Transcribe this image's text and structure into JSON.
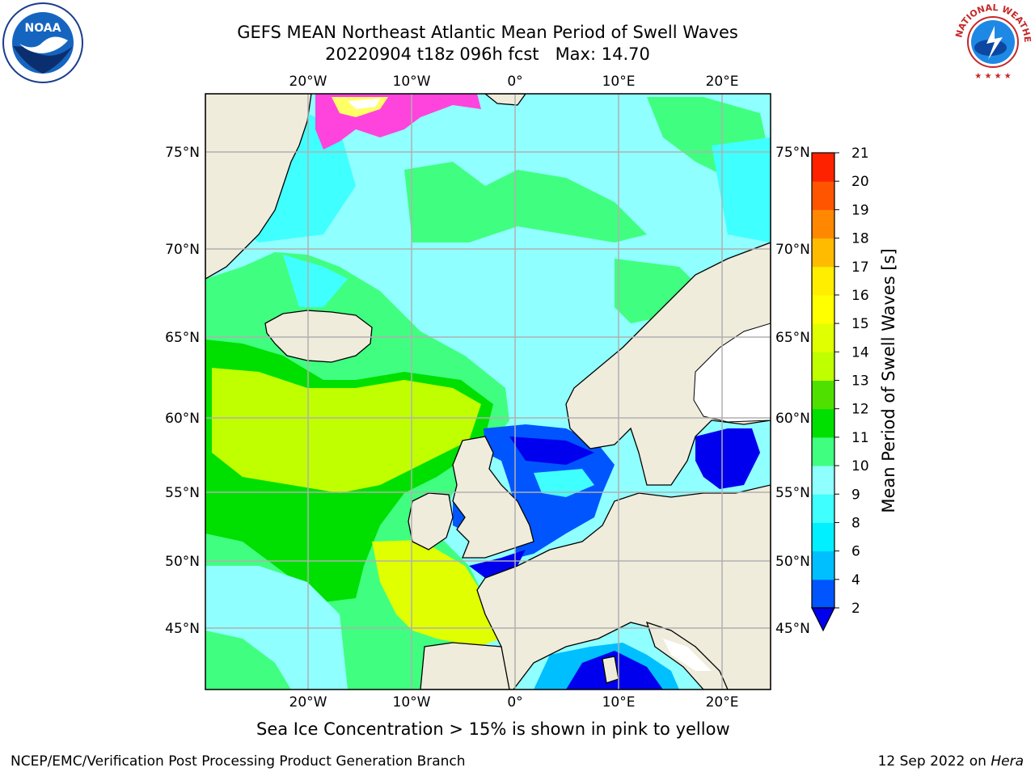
{
  "header": {
    "title_line1": "GEFS MEAN Northeast Atlantic Mean Period of Swell Waves",
    "title_line2": "20220904 t18z 096h fcst   Max: 14.70"
  },
  "logos": {
    "left": "NOAA",
    "right_text": "NATIONAL WEATHER SERVICE"
  },
  "map": {
    "lon_labels": [
      "20°W",
      "10°W",
      "0°",
      "10°E",
      "20°E"
    ],
    "lat_labels": [
      "75°N",
      "70°N",
      "65°N",
      "60°N",
      "55°N",
      "50°N",
      "45°N"
    ]
  },
  "colorbar": {
    "label": "Mean Period of Swell Waves [s]",
    "ticks": [
      "2",
      "4",
      "6",
      "8",
      "9",
      "10",
      "11",
      "12",
      "13",
      "14",
      "15",
      "16",
      "17",
      "18",
      "19",
      "20",
      "21"
    ],
    "colors": [
      "#0055ff",
      "#00bfff",
      "#00f0ff",
      "#40ffff",
      "#90ffff",
      "#40ff80",
      "#00e000",
      "#50e000",
      "#c0ff00",
      "#e0ff00",
      "#ffff00",
      "#ffee00",
      "#ffbb00",
      "#ff8800",
      "#ff5500",
      "#ff2200",
      "#ff0000"
    ],
    "extend_color": "#0000ee"
  },
  "caption": "Sea Ice Concentration > 15% is shown in pink to yellow",
  "footer": {
    "left": "NCEP/EMC/Verification Post Processing Product Generation Branch",
    "right_date": "12 Sep 2022 on ",
    "right_host": "Hera"
  }
}
